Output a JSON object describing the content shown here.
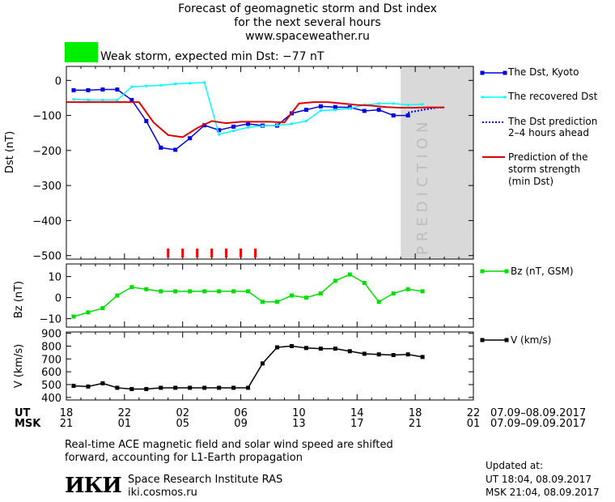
{
  "header": {
    "title_line1": "Forecast of geomagnetic storm and Dst index",
    "title_line2": "for the next several hours",
    "site": "www.spaceweather.ru",
    "storm_label": "Weak storm, expected min Dst: −77 nT",
    "storm_color": "#00ee00"
  },
  "legend": {
    "dst_kyoto": "The Dst, Kyoto",
    "dst_recovered": "The recovered Dst",
    "dst_prediction_1": "The Dst prediction",
    "dst_prediction_2": "2–4 hours ahead",
    "strength_1": "Prediction of the",
    "strength_2": "storm strength",
    "strength_3": "(min Dst)",
    "bz": "Bz (nT, GSM)",
    "v": "V (km/s)"
  },
  "axes": {
    "ut_label": "UT",
    "msk_label": "MSK",
    "ut_ticks": [
      "18",
      "22",
      "02",
      "06",
      "10",
      "14",
      "18",
      "22"
    ],
    "msk_ticks": [
      "21",
      "01",
      "05",
      "09",
      "13",
      "17",
      "21",
      "01"
    ],
    "ut_range": "07.09–08.09.2017",
    "msk_range": "07.09–09.09.2017",
    "prediction_label": "PREDICTION"
  },
  "chart_data": [
    {
      "type": "line",
      "ylabel": "Dst (nT)",
      "ylim": [
        -510,
        40
      ],
      "yticks": [
        0,
        -100,
        -200,
        -300,
        -400,
        -500
      ],
      "xlim": [
        18,
        46
      ],
      "prediction_region": [
        41,
        46
      ],
      "series": [
        {
          "name": "The Dst, Kyoto",
          "color": "#0000dd",
          "x": [
            18.5,
            19.5,
            20.5,
            21.5,
            22.5,
            23.5,
            24.5,
            25.5,
            26.5,
            27.5,
            28.5,
            29.5,
            30.5,
            31.5,
            32.5,
            33.5,
            34.5,
            35.5,
            36.5,
            37.5,
            38.5,
            39.5,
            40.5,
            41.5
          ],
          "y": [
            -28,
            -28,
            -26,
            -26,
            -56,
            -116,
            -192,
            -198,
            -165,
            -128,
            -142,
            -132,
            -124,
            -129,
            -129,
            -94,
            -84,
            -74,
            -76,
            -77,
            -87,
            -84,
            -100,
            -100
          ]
        },
        {
          "name": "The recovered Dst",
          "color": "#00ffff",
          "x": [
            18.5,
            19.5,
            20.5,
            21.5,
            22.5,
            23.5,
            24.5,
            25.5,
            26.5,
            27.5,
            28.5,
            29.5,
            30.5,
            31.5,
            32.5,
            33.5,
            34.5,
            35.5,
            36.5,
            37.5,
            38.5,
            39.5,
            40.5,
            41.5,
            42.5
          ],
          "y": [
            -54,
            -56,
            -56,
            -56,
            -18,
            -16,
            -14,
            -10,
            -8,
            -6,
            -154,
            -144,
            -134,
            -130,
            -128,
            -124,
            -116,
            -86,
            -84,
            -80,
            -70,
            -66,
            -66,
            -70,
            -68
          ]
        },
        {
          "name": "The Dst prediction 2–4 hours ahead",
          "color": "#0000dd",
          "x": [
            41.5,
            42.5,
            43.5,
            44
          ],
          "y": [
            -92,
            -84,
            -78,
            -77
          ]
        },
        {
          "name": "Prediction of the storm strength (min Dst)",
          "color": "#dd0000",
          "x": [
            18,
            23,
            24,
            25,
            26,
            27,
            28,
            29,
            30,
            31,
            32,
            33,
            34,
            35,
            36,
            37,
            38,
            39,
            40,
            41,
            42,
            43,
            44
          ],
          "y": [
            -62,
            -62,
            -120,
            -156,
            -162,
            -136,
            -116,
            -122,
            -118,
            -118,
            -118,
            -120,
            -66,
            -62,
            -62,
            -66,
            -70,
            -72,
            -76,
            -78,
            -78,
            -77,
            -77
          ]
        }
      ],
      "storm_markers_x": [
        25,
        26,
        27,
        28,
        29,
        30,
        31
      ]
    },
    {
      "type": "line",
      "ylabel": "Bz (nT)",
      "ylim": [
        -14,
        16
      ],
      "yticks": [
        10,
        0,
        -10
      ],
      "series": [
        {
          "name": "Bz (nT, GSM)",
          "color": "#00dd00",
          "x": [
            18.5,
            19.5,
            20.5,
            21.5,
            22.5,
            23.5,
            24.5,
            25.5,
            26.5,
            27.5,
            28.5,
            29.5,
            30.5,
            31.5,
            32.5,
            33.5,
            34.5,
            35.5,
            36.5,
            37.5,
            38.5,
            39.5,
            40.5,
            41.5,
            42.5
          ],
          "y": [
            -9,
            -7,
            -5,
            1,
            5,
            4,
            3,
            3,
            3,
            3,
            3,
            3,
            3,
            -2,
            -2,
            1,
            0,
            2,
            8,
            11,
            7,
            -2,
            2,
            4,
            3
          ]
        }
      ]
    },
    {
      "type": "line",
      "ylabel": "V (km/s)",
      "ylim": [
        380,
        910
      ],
      "yticks": [
        900,
        800,
        700,
        600,
        500,
        400
      ],
      "series": [
        {
          "name": "V (km/s)",
          "color": "#000000",
          "x": [
            18.5,
            19.5,
            20.5,
            21.5,
            22.5,
            23.5,
            24.5,
            25.5,
            26.5,
            27.5,
            28.5,
            29.5,
            30.5,
            31.5,
            32.5,
            33.5,
            34.5,
            35.5,
            36.5,
            37.5,
            38.5,
            39.5,
            40.5,
            41.5,
            42.5
          ],
          "y": [
            490,
            485,
            510,
            475,
            465,
            465,
            475,
            475,
            475,
            475,
            475,
            475,
            475,
            665,
            790,
            800,
            785,
            780,
            780,
            760,
            740,
            735,
            730,
            735,
            715
          ]
        }
      ]
    }
  ],
  "footer": {
    "note_line1": "Real-time ACE magnetic field and solar wind speed are shifted",
    "note_line2": "forward, accounting for L1-Earth propagation",
    "logo": "ИКИ",
    "institute": "Space Research Institute RAS",
    "site": "iki.cosmos.ru",
    "updated_label": "Updated at:",
    "updated_ut": "UT   18:04, 08.09.2017",
    "updated_msk": "MSK 21:04, 08.09.2017"
  }
}
